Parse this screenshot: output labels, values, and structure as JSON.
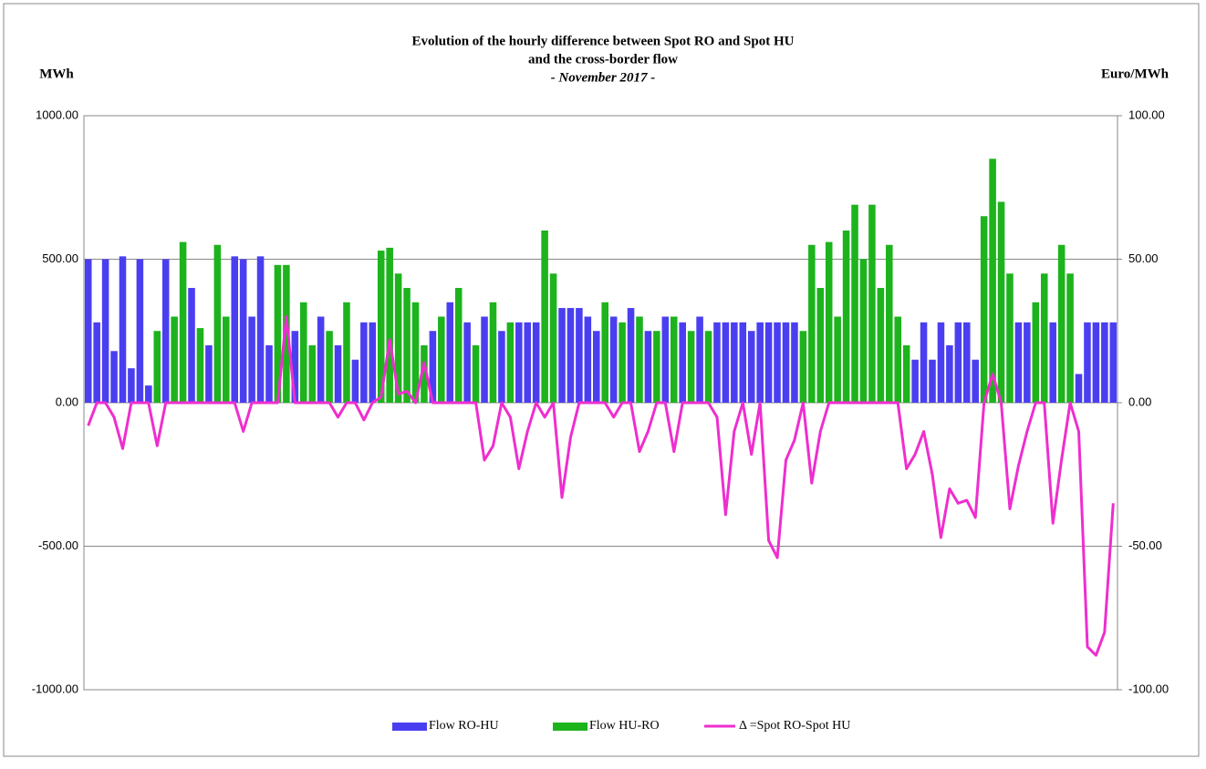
{
  "chart_data": {
    "type": "bar-line",
    "title": "Evolution of the hourly  difference between Spot RO and Spot HU",
    "subtitle": "and the cross-border flow",
    "period": "- November 2017 -",
    "y_label": "MWh",
    "y2_label": "Euro/MWh",
    "ylim": [
      -1000,
      1000
    ],
    "yticks": [
      {
        "value": -1000,
        "label": "-1000.00"
      },
      {
        "value": -500,
        "label": "-500.00"
      },
      {
        "value": 0,
        "label": "0.00"
      },
      {
        "value": 500,
        "label": "500.00"
      },
      {
        "value": 1000,
        "label": "1000.00"
      }
    ],
    "y2lim": [
      -100,
      100
    ],
    "y2ticks": [
      {
        "value": -100,
        "label": "-100.00"
      },
      {
        "value": -50,
        "label": "-50.00"
      },
      {
        "value": 0,
        "label": "0.00"
      },
      {
        "value": 50,
        "label": "50.00"
      },
      {
        "value": 100,
        "label": "100.00"
      }
    ],
    "grid": true,
    "legend": "bottom",
    "series": [
      {
        "name": "Flow RO-HU",
        "color": "#4a3ff0",
        "type": "bar",
        "values": [
          500,
          280,
          500,
          180,
          510,
          120,
          500,
          60,
          null,
          500,
          null,
          null,
          400,
          null,
          200,
          null,
          null,
          510,
          500,
          300,
          510,
          200,
          null,
          null,
          250,
          null,
          null,
          300,
          null,
          200,
          null,
          150,
          280,
          280,
          null,
          null,
          null,
          null,
          null,
          null,
          250,
          null,
          350,
          null,
          280,
          null,
          300,
          null,
          250,
          null,
          280,
          280,
          280,
          null,
          null,
          330,
          330,
          330,
          300,
          250,
          null,
          300,
          null,
          330,
          null,
          250,
          null,
          300,
          null,
          280,
          null,
          300,
          null,
          280,
          280,
          280,
          280,
          250,
          280,
          280,
          280,
          280,
          280,
          null,
          null,
          null,
          null,
          null,
          null,
          null,
          null,
          null,
          null,
          null,
          null,
          null,
          150,
          280,
          150,
          280,
          200,
          280,
          280,
          150,
          null,
          null,
          null,
          null,
          280,
          280,
          null,
          null,
          280,
          null,
          null,
          100,
          280,
          280,
          280,
          280
        ]
      },
      {
        "name": "Flow HU-RO",
        "color": "#1db31d",
        "type": "bar",
        "values": [
          null,
          null,
          null,
          null,
          null,
          null,
          null,
          null,
          250,
          null,
          300,
          560,
          null,
          260,
          null,
          550,
          300,
          null,
          null,
          null,
          null,
          null,
          480,
          480,
          null,
          350,
          200,
          null,
          250,
          null,
          350,
          null,
          null,
          null,
          530,
          540,
          450,
          400,
          350,
          200,
          null,
          300,
          null,
          400,
          null,
          200,
          null,
          350,
          null,
          280,
          null,
          null,
          null,
          600,
          450,
          null,
          null,
          null,
          null,
          null,
          350,
          null,
          280,
          null,
          300,
          null,
          250,
          null,
          300,
          null,
          250,
          null,
          250,
          null,
          null,
          null,
          null,
          null,
          null,
          null,
          null,
          null,
          null,
          250,
          550,
          400,
          560,
          300,
          600,
          690,
          500,
          690,
          400,
          550,
          300,
          200,
          null,
          null,
          null,
          null,
          null,
          null,
          null,
          null,
          650,
          850,
          700,
          450,
          null,
          null,
          350,
          450,
          null,
          550,
          450,
          null,
          null,
          null,
          null,
          null
        ]
      },
      {
        "name": "Δ =Spot RO-Spot HU",
        "color": "#ee2ecf",
        "type": "line",
        "axis": "y2",
        "values": [
          -8,
          0,
          0,
          -5,
          -16,
          0,
          0,
          0,
          -15,
          0,
          0,
          0,
          0,
          0,
          0,
          0,
          0,
          0,
          -10,
          0,
          0,
          0,
          0,
          30,
          0,
          0,
          0,
          0,
          0,
          -5,
          0,
          0,
          -6,
          0,
          2,
          22,
          3,
          4,
          0,
          14,
          0,
          0,
          0,
          0,
          0,
          0,
          -20,
          -15,
          0,
          -5,
          -23,
          -10,
          0,
          -5,
          0,
          -33,
          -12,
          0,
          0,
          0,
          0,
          -5,
          0,
          0,
          -17,
          -10,
          0,
          0,
          -17,
          0,
          0,
          0,
          0,
          -5,
          -39,
          -10,
          0,
          -18,
          0,
          -48,
          -54,
          -20,
          -13,
          0,
          -28,
          -10,
          0,
          0,
          0,
          0,
          0,
          0,
          0,
          0,
          0,
          -23,
          -18,
          -10,
          -25,
          -47,
          -30,
          -35,
          -34,
          -40,
          0,
          10,
          0,
          -37,
          -22,
          -10,
          0,
          0,
          -42,
          -20,
          0,
          -10,
          -85,
          -88,
          -80,
          -35
        ]
      }
    ]
  }
}
